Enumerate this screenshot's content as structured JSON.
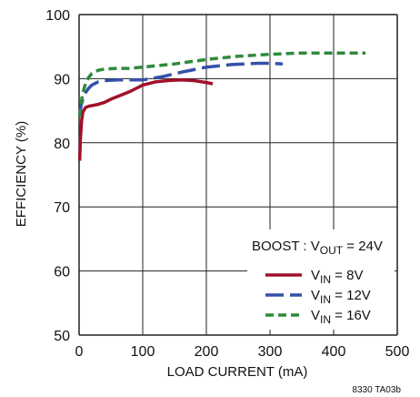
{
  "chart_data": {
    "type": "line",
    "xlabel": "LOAD CURRENT (mA)",
    "ylabel": "EFFICIENCY (%)",
    "xlim": [
      0,
      500
    ],
    "ylim": [
      50,
      100
    ],
    "x_ticks": [
      "0",
      "100",
      "200",
      "300",
      "400",
      "500"
    ],
    "y_ticks": [
      "50",
      "60",
      "70",
      "80",
      "90",
      "100"
    ],
    "grid": true,
    "legend_title": {
      "prefix": "BOOST : V",
      "sub": "OUT",
      "suffix": " = 24V"
    },
    "legend_position": "bottom-right",
    "series": [
      {
        "name_main": "V",
        "name_sub": "IN",
        "name_suffix": " = 8V",
        "color": "#a0102a",
        "dash": "solid",
        "x": [
          1,
          2,
          4,
          6,
          10,
          15,
          20,
          30,
          40,
          50,
          60,
          80,
          100,
          120,
          140,
          160,
          180,
          200,
          210
        ],
        "y": [
          77.2,
          80.5,
          83.5,
          84.8,
          85.5,
          85.7,
          85.8,
          86.0,
          86.3,
          86.8,
          87.2,
          88.0,
          89.0,
          89.5,
          89.7,
          89.8,
          89.7,
          89.4,
          89.2
        ]
      },
      {
        "name_main": "V",
        "name_sub": "IN",
        "name_suffix": " = 12V",
        "color": "#3550a8",
        "dash": "long",
        "x": [
          1,
          3,
          6,
          10,
          15,
          20,
          30,
          40,
          60,
          80,
          100,
          130,
          160,
          200,
          240,
          280,
          300,
          320
        ],
        "y": [
          84.0,
          85.8,
          86.8,
          87.8,
          88.5,
          89.0,
          89.5,
          89.7,
          89.8,
          89.8,
          89.8,
          90.3,
          91.0,
          91.8,
          92.2,
          92.4,
          92.4,
          92.3
        ]
      },
      {
        "name_main": "V",
        "name_sub": "IN",
        "name_suffix": " = 16V",
        "color": "#2e8a3a",
        "dash": "short",
        "x": [
          1,
          3,
          6,
          10,
          15,
          20,
          30,
          40,
          60,
          80,
          100,
          150,
          200,
          250,
          300,
          350,
          400,
          450
        ],
        "y": [
          84.0,
          86.2,
          87.8,
          89.2,
          90.2,
          90.8,
          91.3,
          91.5,
          91.6,
          91.6,
          91.8,
          92.3,
          93.0,
          93.5,
          93.8,
          94.0,
          94.0,
          94.0
        ]
      }
    ],
    "footnote": "8330 TA03b"
  }
}
